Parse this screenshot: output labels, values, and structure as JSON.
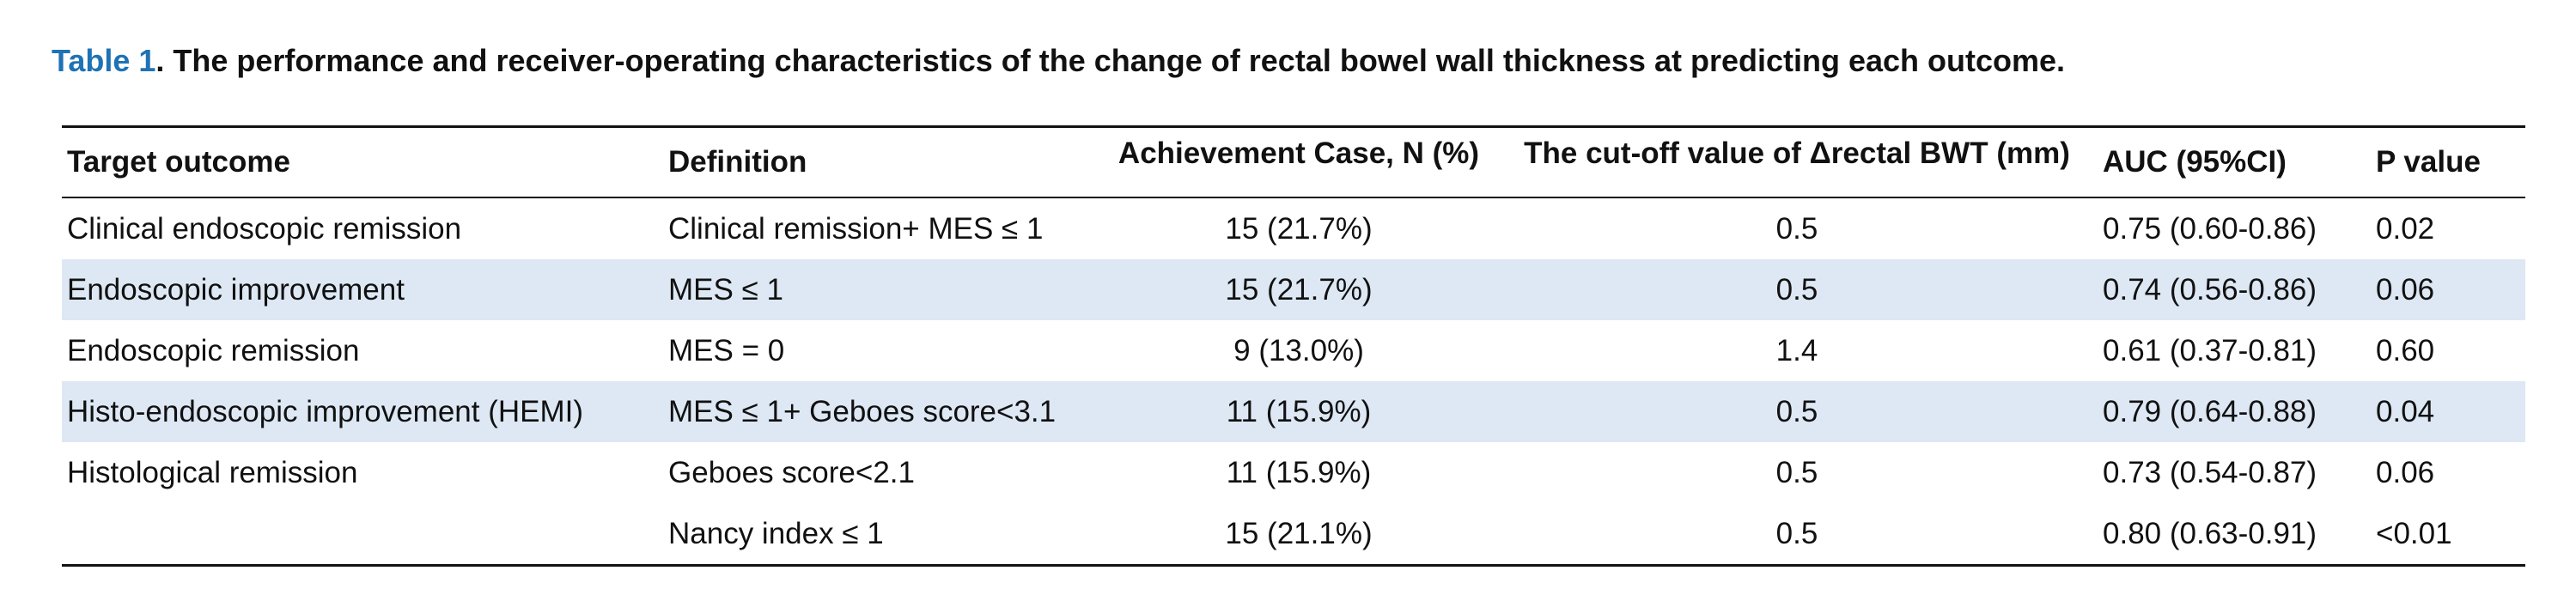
{
  "caption": {
    "label": "Table 1",
    "text": ". The performance and receiver-operating characteristics of the change of rectal bowel wall thickness at predicting each outcome."
  },
  "table": {
    "headers": [
      "Target outcome",
      "Definition",
      "Achievement Case, N (%)",
      "The cut-off value of Δrectal BWT (mm)",
      "AUC (95%CI)",
      "P value"
    ],
    "rows": [
      {
        "cells": [
          "Clinical endoscopic remission",
          "Clinical remission+ MES ≤ 1",
          "15 (21.7%)",
          "0.5",
          "0.75 (0.60-0.86)",
          "0.02"
        ],
        "shaded": false
      },
      {
        "cells": [
          "Endoscopic improvement",
          "MES ≤ 1",
          "15 (21.7%)",
          "0.5",
          "0.74 (0.56-0.86)",
          "0.06"
        ],
        "shaded": true
      },
      {
        "cells": [
          "Endoscopic remission",
          "MES = 0",
          "9 (13.0%)",
          "1.4",
          "0.61 (0.37-0.81)",
          "0.60"
        ],
        "shaded": false
      },
      {
        "cells": [
          "Histo-endoscopic improvement (HEMI)",
          "MES ≤ 1+ Geboes score<3.1",
          "11 (15.9%)",
          "0.5",
          "0.79 (0.64-0.88)",
          "0.04"
        ],
        "shaded": true
      },
      {
        "cells": [
          "Histological remission",
          "Geboes score<2.1",
          "11 (15.9%)",
          "0.5",
          "0.73 (0.54-0.87)",
          "0.06"
        ],
        "shaded": false
      },
      {
        "cells": [
          "",
          "Nancy index ≤ 1",
          "15 (21.1%)",
          "0.5",
          "0.80 (0.63-0.91)",
          "<0.01"
        ],
        "shaded": false
      }
    ]
  },
  "colors": {
    "caption_label": "#1f72b4",
    "row_shading": "#dde8f4",
    "rule": "#111111"
  }
}
